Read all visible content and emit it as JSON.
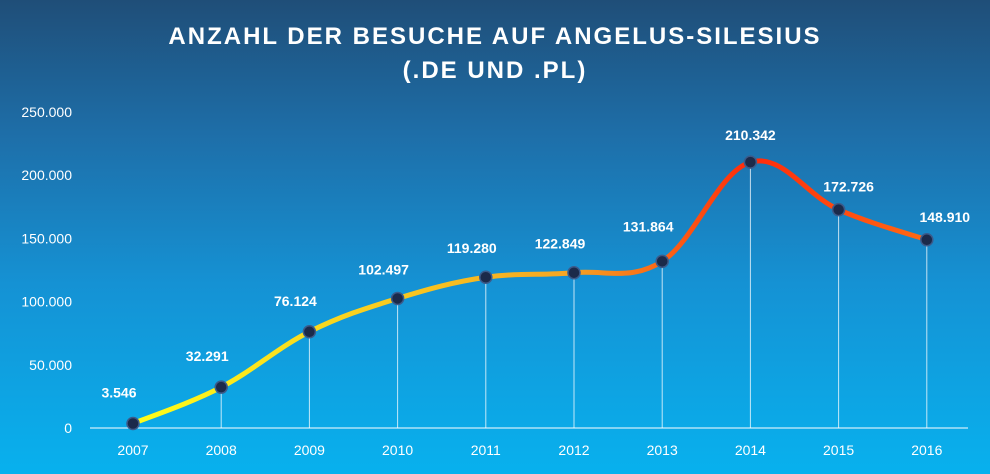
{
  "colors": {
    "line_start": "#ffff1a",
    "line_mid": "#f5a623",
    "line_peak": "#ff2a0a",
    "line_end": "#ff6a14",
    "marker": "#1b2a4a"
  },
  "chart_data": {
    "type": "line",
    "title_line1": "ANZAHL DER BESUCHE AUF ANGELUS-SILESIUS",
    "title_line2": "(.DE UND .PL)",
    "xlabel": "",
    "ylabel": "",
    "categories": [
      "2007",
      "2008",
      "2009",
      "2010",
      "2011",
      "2012",
      "2013",
      "2014",
      "2015",
      "2016"
    ],
    "values": [
      3546,
      32291,
      76124,
      102497,
      119280,
      122849,
      131864,
      210342,
      172726,
      148910
    ],
    "data_labels": [
      "3.546",
      "32.291",
      "76.124",
      "102.497",
      "119.280",
      "122.849",
      "131.864",
      "210.342",
      "172.726",
      "148.910"
    ],
    "y_ticks": [
      0,
      50000,
      100000,
      150000,
      200000,
      250000
    ],
    "y_tick_labels": [
      "0",
      "50.000",
      "100.000",
      "150.000",
      "200.000",
      "250.000"
    ],
    "ylim": [
      0,
      250000
    ],
    "grid": false,
    "legend": "none"
  }
}
